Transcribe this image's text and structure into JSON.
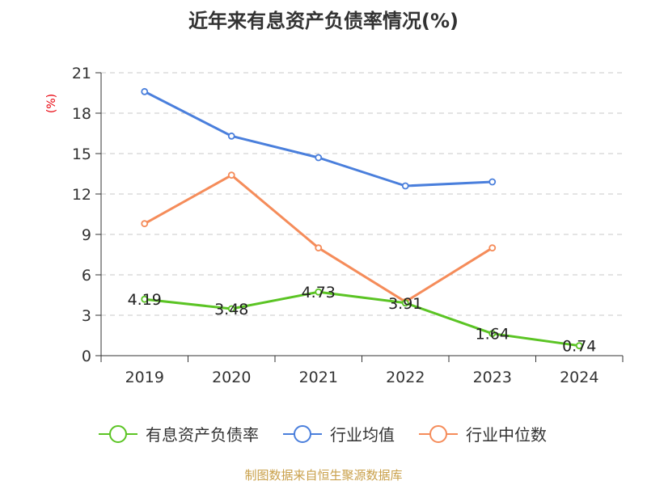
{
  "chart_data": {
    "type": "line",
    "title": "近年来有息资产负债率情况(%)",
    "ylabel": "(%)",
    "xlabel": "",
    "categories": [
      "2019",
      "2020",
      "2021",
      "2022",
      "2023",
      "2024"
    ],
    "ylim": [
      0,
      21
    ],
    "yticks": [
      0,
      3,
      6,
      9,
      12,
      15,
      18,
      21
    ],
    "grid": true,
    "legend_position": "bottom",
    "series": [
      {
        "name": "有息资产负债率",
        "color": "#5bc424",
        "values": [
          4.19,
          3.48,
          4.73,
          3.91,
          1.64,
          0.74
        ],
        "data_labels": true
      },
      {
        "name": "行业均值",
        "color": "#4a7fdc",
        "values": [
          19.6,
          16.3,
          14.7,
          12.6,
          12.9,
          null
        ],
        "data_labels": false
      },
      {
        "name": "行业中位数",
        "color": "#f58c5a",
        "values": [
          9.8,
          13.4,
          8.0,
          4.0,
          8.0,
          null
        ],
        "data_labels": false
      }
    ]
  },
  "source": "制图数据来自恒生聚源数据库"
}
